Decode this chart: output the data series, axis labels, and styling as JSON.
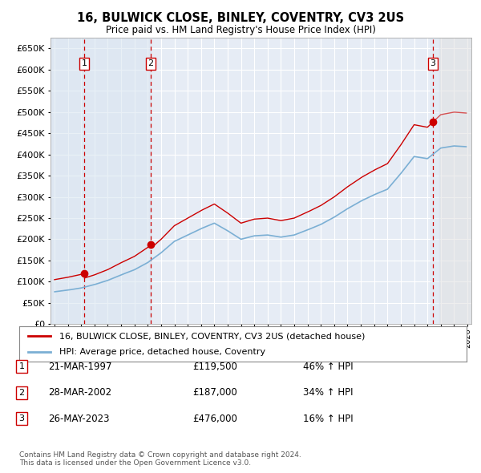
{
  "title": "16, BULWICK CLOSE, BINLEY, COVENTRY, CV3 2US",
  "subtitle": "Price paid vs. HM Land Registry's House Price Index (HPI)",
  "ylim": [
    0,
    675000
  ],
  "yticks": [
    0,
    50000,
    100000,
    150000,
    200000,
    250000,
    300000,
    350000,
    400000,
    450000,
    500000,
    550000,
    600000,
    650000
  ],
  "xlim_start": 1994.7,
  "xlim_end": 2026.3,
  "background_color": "#ffffff",
  "plot_bg_color": "#e6ecf5",
  "grid_color": "#ffffff",
  "purchases": [
    {
      "date_num": 1997.22,
      "price": 119500,
      "label": "1"
    },
    {
      "date_num": 2002.22,
      "price": 187000,
      "label": "2"
    },
    {
      "date_num": 2023.4,
      "price": 476000,
      "label": "3"
    }
  ],
  "transaction_labels": [
    {
      "num": "1",
      "date": "21-MAR-1997",
      "price": "£119,500",
      "hpi": "46% ↑ HPI"
    },
    {
      "num": "2",
      "date": "28-MAR-2002",
      "price": "£187,000",
      "hpi": "34% ↑ HPI"
    },
    {
      "num": "3",
      "date": "26-MAY-2023",
      "price": "£476,000",
      "hpi": "16% ↑ HPI"
    }
  ],
  "legend_property": "16, BULWICK CLOSE, BINLEY, COVENTRY, CV3 2US (detached house)",
  "legend_hpi": "HPI: Average price, detached house, Coventry",
  "footer": "Contains HM Land Registry data © Crown copyright and database right 2024.\nThis data is licensed under the Open Government Licence v3.0.",
  "property_line_color": "#cc0000",
  "hpi_line_color": "#7bafd4",
  "marker_color": "#cc0000",
  "vline_color": "#cc0000",
  "shade_color_left": "#d8e4f0",
  "shade_color_right": "#dce8f4",
  "future_shade_color": "#e0e0e0"
}
